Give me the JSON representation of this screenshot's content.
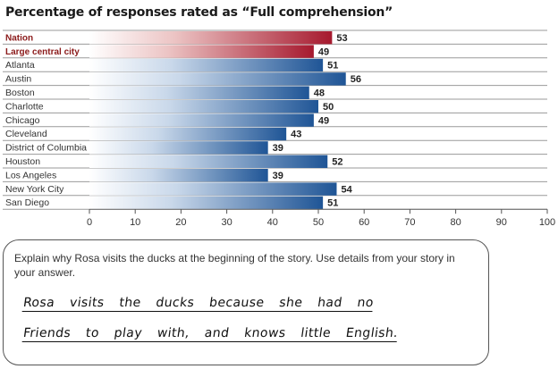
{
  "chart_data": {
    "type": "bar",
    "orientation": "horizontal",
    "title": "Percentage of responses rated as “Full comprehension”",
    "categories": [
      "Nation",
      "Large central city",
      "Atlanta",
      "Austin",
      "Boston",
      "Charlotte",
      "Chicago",
      "Cleveland",
      "District of Columbia",
      "Houston",
      "Los Angeles",
      "New York City",
      "San Diego"
    ],
    "values": [
      53,
      49,
      51,
      56,
      48,
      50,
      49,
      43,
      39,
      52,
      39,
      54,
      51
    ],
    "highlighted": [
      "Nation",
      "Large central city"
    ],
    "xlim": [
      0,
      100
    ],
    "xticks": [
      0,
      10,
      20,
      30,
      40,
      50,
      60,
      70,
      80,
      90,
      100
    ],
    "grid": false,
    "colors": {
      "highlight": "#a6192e",
      "bar": "#1f5596",
      "label_highlight": "#8b1a1a"
    }
  },
  "question": {
    "prompt": "Explain why Rosa visits the ducks at the beginning of the story. Use details from your story in your answer.",
    "answer_lines": [
      "Rosa visits the ducks because she had no",
      "Friends to play with, and knows little English."
    ]
  }
}
